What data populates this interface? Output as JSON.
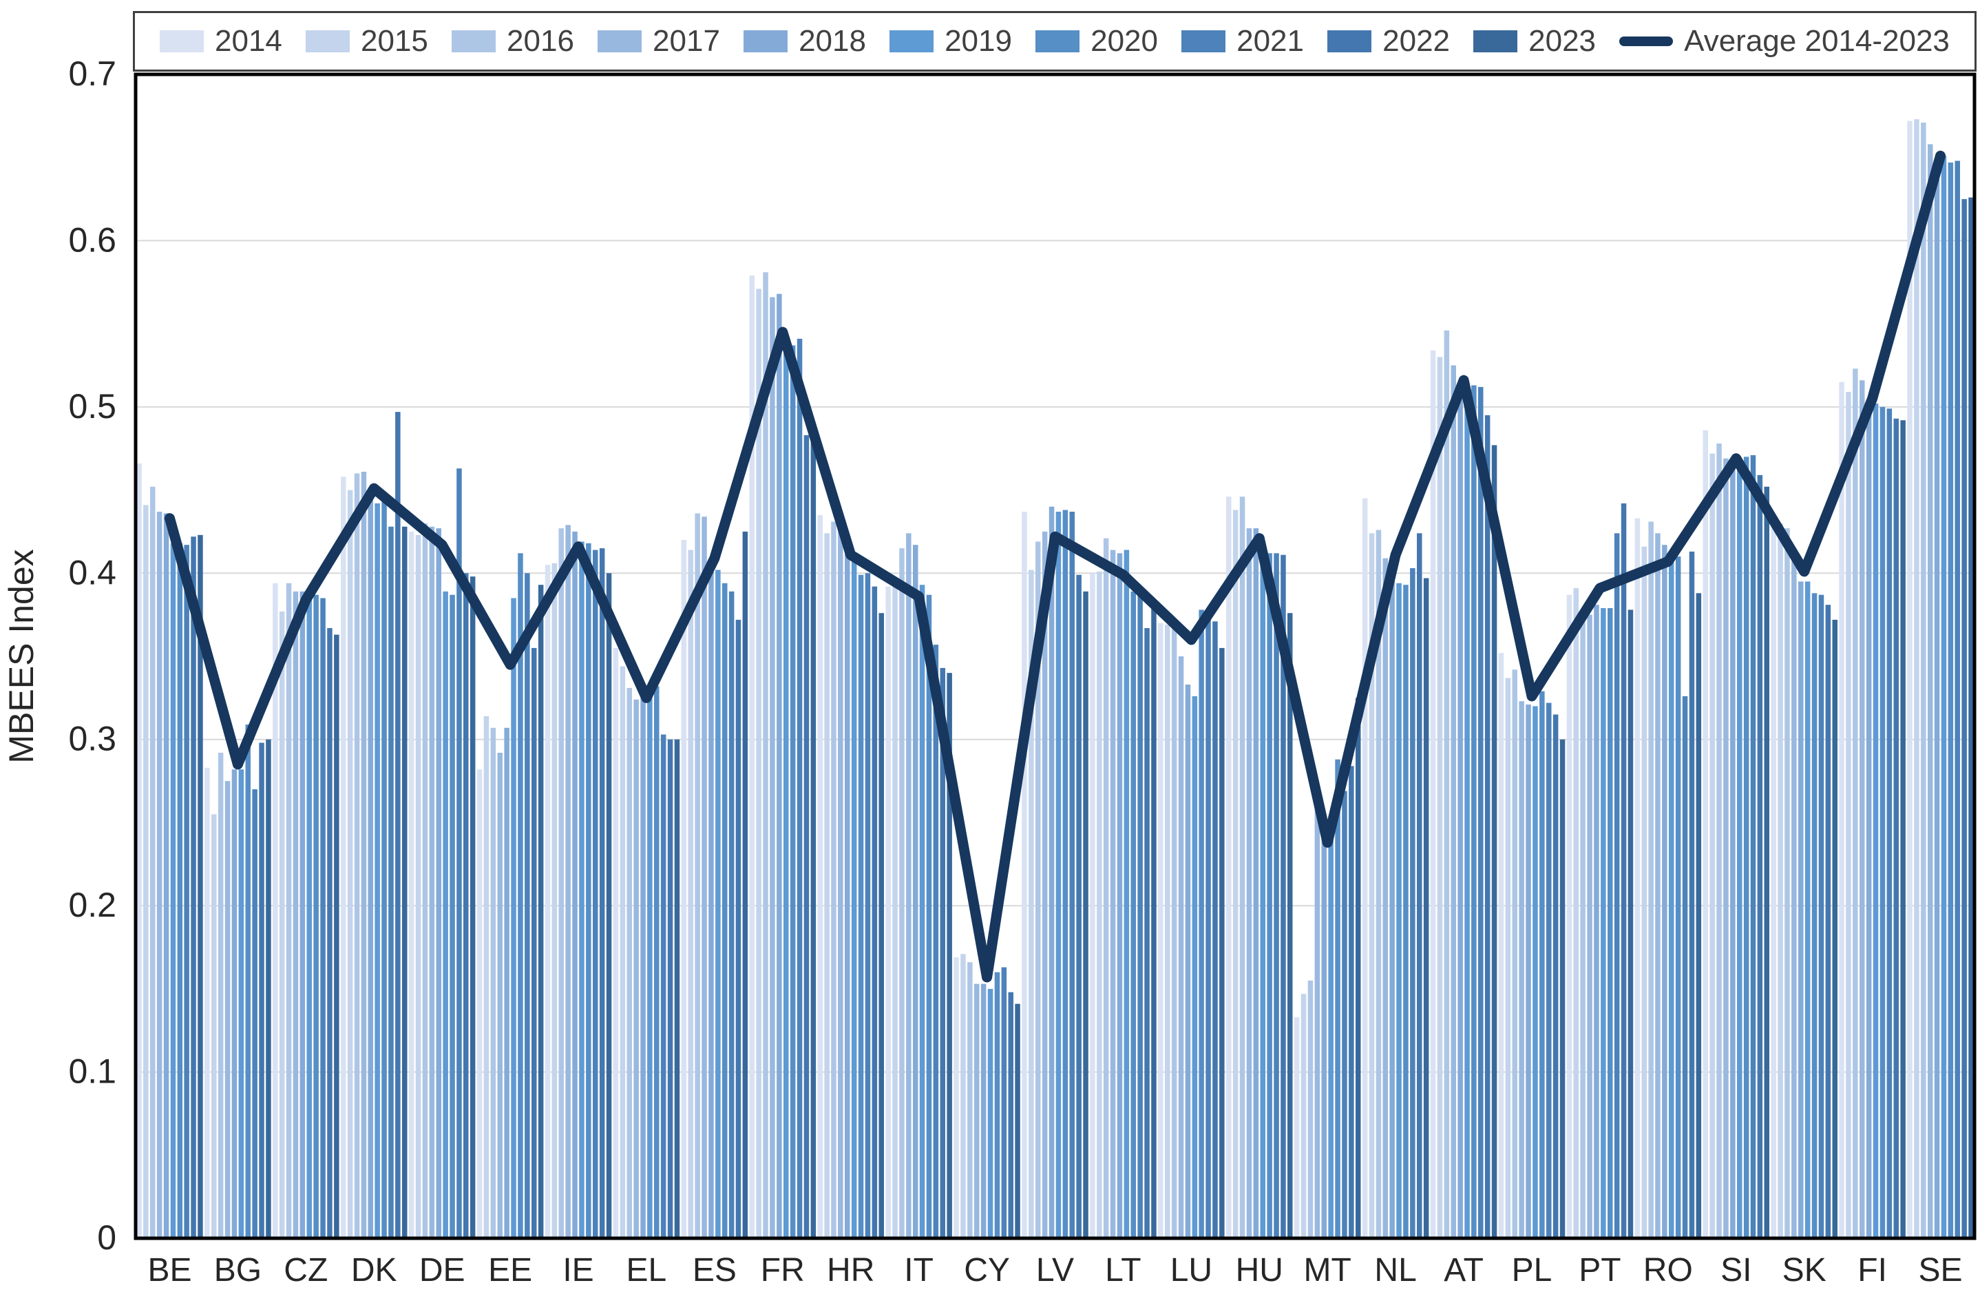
{
  "chart_data": {
    "type": "bar",
    "title": "",
    "xlabel": "",
    "ylabel": "MBEES Index",
    "ylim": [
      0,
      0.7
    ],
    "yticks": [
      0,
      0.1,
      0.2,
      0.3,
      0.4,
      0.5,
      0.6,
      0.7
    ],
    "ytick_labels": [
      "0",
      "0.1",
      "0.2",
      "0.3",
      "0.4",
      "0.5",
      "0.6",
      "0.7"
    ],
    "grid": true,
    "legend_position": "top",
    "categories": [
      "BE",
      "BG",
      "CZ",
      "DK",
      "DE",
      "EE",
      "IE",
      "EL",
      "ES",
      "FR",
      "HR",
      "IT",
      "CY",
      "LV",
      "LT",
      "LU",
      "HU",
      "MT",
      "NL",
      "AT",
      "PL",
      "PT",
      "RO",
      "SI",
      "SK",
      "FI",
      "SE"
    ],
    "series": [
      {
        "name": "2014",
        "color": "#D9E2F3",
        "values": [
          0.466,
          0.283,
          0.394,
          0.458,
          0.425,
          0.282,
          0.405,
          0.355,
          0.42,
          0.579,
          0.435,
          0.392,
          0.169,
          0.437,
          0.4,
          0.37,
          0.446,
          0.133,
          0.445,
          0.534,
          0.352,
          0.387,
          0.433,
          0.486,
          0.429,
          0.515,
          0.672
        ]
      },
      {
        "name": "2015",
        "color": "#C3D4EC",
        "values": [
          0.441,
          0.255,
          0.377,
          0.45,
          0.423,
          0.314,
          0.406,
          0.344,
          0.414,
          0.571,
          0.424,
          0.392,
          0.171,
          0.402,
          0.401,
          0.369,
          0.438,
          0.147,
          0.424,
          0.53,
          0.337,
          0.391,
          0.416,
          0.472,
          0.43,
          0.509,
          0.673
        ]
      },
      {
        "name": "2016",
        "color": "#AEC6E6",
        "values": [
          0.452,
          0.292,
          0.394,
          0.46,
          0.43,
          0.307,
          0.427,
          0.331,
          0.436,
          0.581,
          0.431,
          0.415,
          0.166,
          0.419,
          0.421,
          0.371,
          0.446,
          0.155,
          0.426,
          0.546,
          0.342,
          0.378,
          0.431,
          0.478,
          0.427,
          0.523,
          0.671
        ]
      },
      {
        "name": "2017",
        "color": "#99B8DF",
        "values": [
          0.437,
          0.275,
          0.389,
          0.461,
          0.428,
          0.292,
          0.429,
          0.324,
          0.434,
          0.566,
          0.43,
          0.424,
          0.153,
          0.425,
          0.414,
          0.35,
          0.427,
          0.265,
          0.409,
          0.525,
          0.323,
          0.375,
          0.424,
          0.469,
          0.41,
          0.516,
          0.658
        ]
      },
      {
        "name": "2018",
        "color": "#84AAD8",
        "values": [
          0.436,
          0.282,
          0.389,
          0.446,
          0.427,
          0.307,
          0.425,
          0.325,
          0.403,
          0.568,
          0.414,
          0.417,
          0.153,
          0.44,
          0.412,
          0.333,
          0.427,
          0.255,
          0.395,
          0.515,
          0.321,
          0.381,
          0.417,
          0.469,
          0.395,
          0.503,
          0.637
        ]
      },
      {
        "name": "2019",
        "color": "#5E9AD3",
        "values": [
          0.418,
          0.282,
          0.39,
          0.442,
          0.389,
          0.385,
          0.419,
          0.333,
          0.402,
          0.54,
          0.412,
          0.393,
          0.15,
          0.437,
          0.414,
          0.326,
          0.413,
          0.254,
          0.394,
          0.514,
          0.32,
          0.379,
          0.412,
          0.468,
          0.395,
          0.502,
          0.651
        ]
      },
      {
        "name": "2020",
        "color": "#568EC6",
        "values": [
          0.418,
          0.309,
          0.387,
          0.443,
          0.387,
          0.412,
          0.418,
          0.332,
          0.394,
          0.537,
          0.399,
          0.387,
          0.16,
          0.438,
          0.389,
          0.378,
          0.412,
          0.288,
          0.393,
          0.513,
          0.329,
          0.379,
          0.41,
          0.47,
          0.388,
          0.5,
          0.647
        ]
      },
      {
        "name": "2021",
        "color": "#4D82BA",
        "values": [
          0.417,
          0.27,
          0.385,
          0.428,
          0.463,
          0.4,
          0.414,
          0.303,
          0.389,
          0.541,
          0.4,
          0.357,
          0.163,
          0.437,
          0.388,
          0.373,
          0.412,
          0.269,
          0.403,
          0.512,
          0.322,
          0.424,
          0.326,
          0.471,
          0.387,
          0.499,
          0.648
        ]
      },
      {
        "name": "2022",
        "color": "#4477AF",
        "values": [
          0.422,
          0.298,
          0.367,
          0.497,
          0.4,
          0.355,
          0.415,
          0.3,
          0.372,
          0.483,
          0.392,
          0.343,
          0.148,
          0.399,
          0.367,
          0.371,
          0.411,
          0.284,
          0.424,
          0.495,
          0.315,
          0.442,
          0.413,
          0.459,
          0.381,
          0.493,
          0.625
        ]
      },
      {
        "name": "2023",
        "color": "#39699B",
        "values": [
          0.423,
          0.3,
          0.363,
          0.428,
          0.398,
          0.393,
          0.4,
          0.3,
          0.425,
          0.482,
          0.376,
          0.34,
          0.141,
          0.389,
          0.379,
          0.355,
          0.376,
          0.325,
          0.397,
          0.477,
          0.3,
          0.378,
          0.388,
          0.452,
          0.372,
          0.492,
          0.626
        ]
      }
    ],
    "average_line": {
      "name": "Average 2014-2023",
      "color": "#17375E",
      "values": [
        0.433,
        0.285,
        0.384,
        0.451,
        0.417,
        0.345,
        0.416,
        0.325,
        0.409,
        0.545,
        0.411,
        0.386,
        0.157,
        0.422,
        0.399,
        0.36,
        0.421,
        0.238,
        0.411,
        0.516,
        0.326,
        0.391,
        0.407,
        0.469,
        0.401,
        0.505,
        0.651
      ]
    }
  },
  "legend": {
    "items": [
      {
        "label": "2014",
        "color": "#D9E2F3",
        "type": "box"
      },
      {
        "label": "2015",
        "color": "#C3D4EC",
        "type": "box"
      },
      {
        "label": "2016",
        "color": "#AEC6E6",
        "type": "box"
      },
      {
        "label": "2017",
        "color": "#99B8DF",
        "type": "box"
      },
      {
        "label": "2018",
        "color": "#84AAD8",
        "type": "box"
      },
      {
        "label": "2019",
        "color": "#5E9AD3",
        "type": "box"
      },
      {
        "label": "2020",
        "color": "#568EC6",
        "type": "box"
      },
      {
        "label": "2021",
        "color": "#4D82BA",
        "type": "box"
      },
      {
        "label": "2022",
        "color": "#4477AF",
        "type": "box"
      },
      {
        "label": "2023",
        "color": "#39699B",
        "type": "box"
      },
      {
        "label": "Average 2014-2023",
        "color": "#17375E",
        "type": "line"
      }
    ]
  },
  "style": {
    "gridline_color": "#D9D9D9",
    "axis_border_color": "#000000",
    "tick_label_color": "#262626",
    "legend_text_color": "#404040",
    "background": "#FFFFFF"
  }
}
